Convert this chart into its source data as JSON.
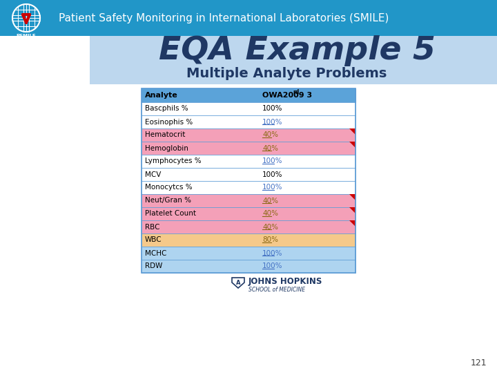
{
  "header_bg": "#2196C8",
  "header_text": "Patient Safety Monitoring in International Laboratories (SMILE)",
  "header_text_color": "#FFFFFF",
  "title_bg": "#BDD7EE",
  "title_text": "EQA Example 5",
  "subtitle_text": "Multiple Analyte Problems",
  "title_text_color": "#1F3864",
  "subtitle_text_color": "#1F3864",
  "page_bg": "#FFFFFF",
  "page_number": "121",
  "table_header_bg": "#5BA3D9",
  "table_header_text_color": "#000000",
  "col1_header": "Analyte",
  "col2_header": "OWA2009 3",
  "col2_super": "rd",
  "rows": [
    {
      "analyte": "Bascphils %",
      "value": "100%",
      "bg": "#FFFFFF",
      "flag": false,
      "underline": false
    },
    {
      "analyte": "Eosinophis %",
      "value": "100%",
      "bg": "#FFFFFF",
      "flag": false,
      "underline": true
    },
    {
      "analyte": "Hematocrit",
      "value": "40%",
      "bg": "#F4A0B8",
      "flag": true,
      "underline": true
    },
    {
      "analyte": "Hemoglobin",
      "value": "40%",
      "bg": "#F4A0B8",
      "flag": true,
      "underline": true
    },
    {
      "analyte": "Lymphocytes %",
      "value": "100%",
      "bg": "#FFFFFF",
      "flag": false,
      "underline": true
    },
    {
      "analyte": "MCV",
      "value": "100%",
      "bg": "#FFFFFF",
      "flag": false,
      "underline": false
    },
    {
      "analyte": "Monocytcs %",
      "value": "100%",
      "bg": "#FFFFFF",
      "flag": false,
      "underline": true
    },
    {
      "analyte": "Neut/Gran %",
      "value": "40%",
      "bg": "#F4A0B8",
      "flag": true,
      "underline": true
    },
    {
      "analyte": "Platelet Count",
      "value": "40%",
      "bg": "#F4A0B8",
      "flag": true,
      "underline": true
    },
    {
      "analyte": "RBC",
      "value": "40%",
      "bg": "#F4A0B8",
      "flag": true,
      "underline": true
    },
    {
      "analyte": "WBC",
      "value": "80%",
      "bg": "#F5C98A",
      "flag": false,
      "underline": true
    },
    {
      "analyte": "MCHC",
      "value": "100%",
      "bg": "#AED4F0",
      "flag": false,
      "underline": true
    },
    {
      "analyte": "RDW",
      "value": "100%",
      "bg": "#AED4F0",
      "flag": false,
      "underline": true
    }
  ],
  "jhu_logo_text": "JOHNS HOPKINS",
  "jhu_sub_text": "SCHOOL of MEDICINE"
}
